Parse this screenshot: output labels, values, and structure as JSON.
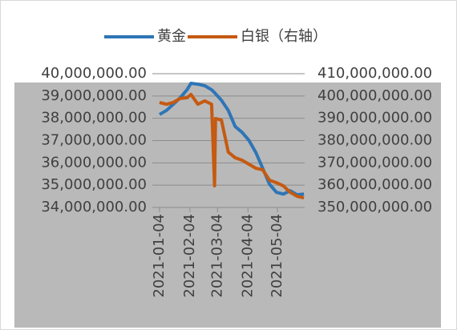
{
  "chart_data": {
    "type": "line",
    "x": [
      "2021-01-04",
      "2021-01-11",
      "2021-01-18",
      "2021-01-25",
      "2021-02-01",
      "2021-02-05",
      "2021-02-12",
      "2021-02-19",
      "2021-02-26",
      "2021-03-01",
      "2021-03-02",
      "2021-03-08",
      "2021-03-15",
      "2021-03-22",
      "2021-03-29",
      "2021-04-05",
      "2021-04-12",
      "2021-04-19",
      "2021-04-26",
      "2021-05-03",
      "2021-05-10",
      "2021-05-17",
      "2021-05-24",
      "2021-05-31"
    ],
    "series": [
      {
        "name": "黄金",
        "color": "#2e75b6",
        "values": [
          38170000,
          38350000,
          38630000,
          38920000,
          39280000,
          39570000,
          39530000,
          39460000,
          39280000,
          39150000,
          39100000,
          38810000,
          38350000,
          37630000,
          37370000,
          37010000,
          36470000,
          35760000,
          35040000,
          34680000,
          34600000,
          34750000,
          34570000,
          34600000
        ]
      },
      {
        "name": "白银（右轴）",
        "color": "#c55a11",
        "axis": "y2",
        "values": [
          397100000,
          396300000,
          397100000,
          398900000,
          399200000,
          400700000,
          396300000,
          397800000,
          396300000,
          359700000,
          389900000,
          389200000,
          374800000,
          372300000,
          371200000,
          369400000,
          367600000,
          366900000,
          362200000,
          361100000,
          359700000,
          356800000,
          355000000,
          354300000
        ]
      }
    ],
    "ylim": [
      34000000,
      40000000
    ],
    "yticks": [
      {
        "value": 34000000,
        "label": "34,000,000.00"
      },
      {
        "value": 35000000,
        "label": "35,000,000.00"
      },
      {
        "value": 36000000,
        "label": "36,000,000.00"
      },
      {
        "value": 37000000,
        "label": "37,000,000.00"
      },
      {
        "value": 38000000,
        "label": "38,000,000.00"
      },
      {
        "value": 39000000,
        "label": "39,000,000.00"
      },
      {
        "value": 40000000,
        "label": "40,000,000.00"
      }
    ],
    "y2lim": [
      350000000,
      410000000
    ],
    "y2ticks": [
      {
        "value": 350000000,
        "label": "350,000,000.00"
      },
      {
        "value": 360000000,
        "label": "360,000,000.00"
      },
      {
        "value": 370000000,
        "label": "370,000,000.00"
      },
      {
        "value": 380000000,
        "label": "380,000,000.00"
      },
      {
        "value": 390000000,
        "label": "390,000,000.00"
      },
      {
        "value": 400000000,
        "label": "400,000,000.00"
      },
      {
        "value": 410000000,
        "label": "410,000,000.00"
      }
    ],
    "xticks": [
      "2021-01-04",
      "2021-02-04",
      "2021-03-04",
      "2021-04-04",
      "2021-05-04"
    ],
    "grid": true,
    "legend": "top"
  }
}
